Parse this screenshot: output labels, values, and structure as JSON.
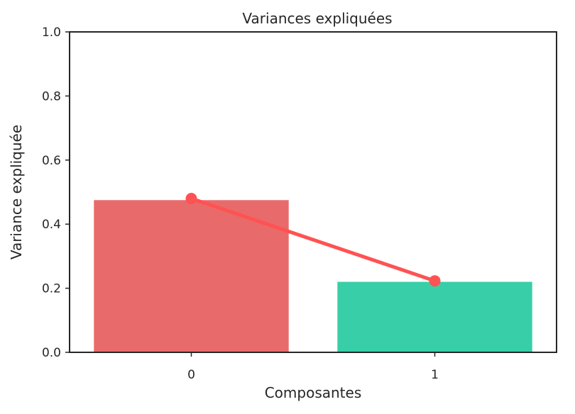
{
  "chart_data": {
    "type": "bar",
    "title": "Variances expliquées",
    "xlabel": "Composantes",
    "ylabel": "Variance expliquée",
    "categories": [
      "0",
      "1"
    ],
    "values": [
      0.475,
      0.22
    ],
    "bar_colors": [
      "#e96a6a",
      "#38cfa8"
    ],
    "line": {
      "values": [
        0.48,
        0.223
      ],
      "color": "#ff5252"
    },
    "ylim": [
      0,
      1
    ],
    "yticks": [
      "0.0",
      "0.2",
      "0.4",
      "0.6",
      "0.8",
      "1.0"
    ],
    "grid": false,
    "legend": "none"
  }
}
